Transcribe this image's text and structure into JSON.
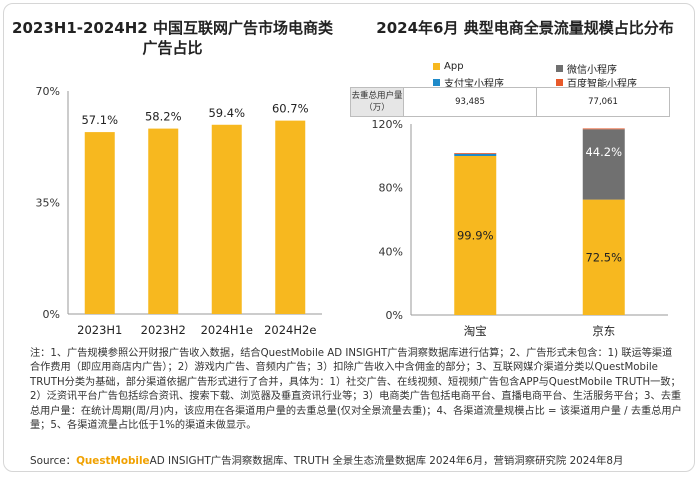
{
  "colors": {
    "bar": "#f7b81f",
    "app": "#f7b81f",
    "mini_wechat": "#707070",
    "mini_alipay": "#1f8ac9",
    "mini_baidu": "#e8592a",
    "brand": "#f0a100"
  },
  "chart_data": [
    {
      "type": "bar",
      "title": "2023H1-2024H2 中国互联网广告市场电商类广告占比",
      "categories": [
        "2023H1",
        "2023H2",
        "2024H1e",
        "2024H2e"
      ],
      "values": [
        57.1,
        58.2,
        59.4,
        60.7
      ],
      "value_labels": [
        "57.1%",
        "58.2%",
        "59.4%",
        "60.7%"
      ],
      "ylim": [
        0,
        70
      ],
      "yticks": [
        "0%",
        "35%",
        "70%"
      ],
      "grid": false
    },
    {
      "type": "bar",
      "stacked": true,
      "title": "2024年6月 典型电商全景流量规模占比分布",
      "categories": [
        "淘宝",
        "京东"
      ],
      "series": [
        {
          "name": "App",
          "values": [
            99.9,
            72.5
          ]
        },
        {
          "name": "微信小程序",
          "values": [
            0.0,
            44.2
          ]
        },
        {
          "name": "支付宝小程序",
          "values": [
            1.5,
            0.0
          ]
        },
        {
          "name": "百度智能小程序",
          "values": [
            0.3,
            0.5
          ]
        }
      ],
      "value_labels": {
        "淘宝": [
          "99.9%"
        ],
        "京东": [
          "72.5%",
          "44.2%"
        ]
      },
      "ylim": [
        0,
        120
      ],
      "yticks": [
        "0%",
        "40%",
        "80%",
        "120%"
      ],
      "legend_position": "top",
      "table": {
        "header": "去重总用户量（万）",
        "values": [
          "93,485",
          "77,061"
        ]
      }
    }
  ],
  "note": "注：1、广告规模参照公开财报广告收入数据，结合QuestMobile AD INSIGHT广告洞察数据库进行估算；2、广告形式未包含：1) 联运等渠道合作费用（即应用商店内广告）；2）游戏内广告、音频内广告；3）扣除广告收入中含佣金的部分；3、互联网媒介渠道分类以QuestMobile TRUTH分类为基础，部分渠道依据广告形式进行了合并，具体为：1）社交广告、在线视频、短视频广告包含APP与QuestMobile TRUTH一致；2）泛资讯平台广告包括综合资讯、搜索下载、浏览器及垂直资讯行业等；3）电商类广告包括电商平台、直播电商平台、生活服务平台；3、去重总用户量：在统计周期(周/月)内，该应用在各渠道用户量的去重总量(仅对全景流量去重)；4、各渠道流量规模占比 = 该渠道用户量 / 去重总用户量；5、各渠道流量占比低于1%的渠道未做显示。",
  "source": {
    "prefix": "Source：",
    "brand": "QuestMobile",
    "rest": "AD INSIGHT广告洞察数据库、TRUTH 全景生态流量数据库 2024年6月，营销洞察研究院 2024年8月"
  }
}
